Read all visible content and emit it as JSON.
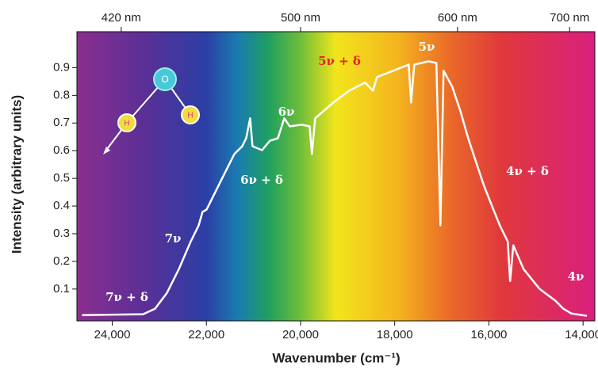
{
  "chart_data": {
    "type": "line",
    "xlabel": "Wavenumber (cm⁻¹)",
    "ylabel": "Intensity (arbitrary units)",
    "xlim": [
      24750,
      13750
    ],
    "ylim": [
      -0.015,
      1.03
    ],
    "xticks": [
      {
        "value": 24000,
        "label": "24,000"
      },
      {
        "value": 22000,
        "label": "22,000"
      },
      {
        "value": 20000,
        "label": "20,000"
      },
      {
        "value": 18000,
        "label": "18,000"
      },
      {
        "value": 16000,
        "label": "16,000"
      },
      {
        "value": 14000,
        "label": "14,000"
      }
    ],
    "yticks": [
      0.1,
      0.2,
      0.3,
      0.4,
      0.5,
      0.6,
      0.7,
      0.8,
      0.9
    ],
    "x2ticks": [
      {
        "value": 420,
        "label": "420 nm"
      },
      {
        "value": 500,
        "label": "500 nm"
      },
      {
        "value": 600,
        "label": "600 nm"
      },
      {
        "value": 700,
        "label": "700 nm"
      }
    ],
    "x": [
      24640,
      23343,
      23091,
      22838,
      22586,
      22333,
      22165,
      22081,
      21997,
      21912,
      21660,
      21407,
      21239,
      21155,
      21071,
      21020,
      20818,
      20650,
      20481,
      20347,
      20229,
      19976,
      19808,
      19758,
      19690,
      19303,
      18966,
      18630,
      18461,
      18377,
      17956,
      17704,
      17653,
      17586,
      17283,
      17115,
      17030,
      16963,
      16778,
      16609,
      16441,
      16273,
      16104,
      15936,
      15768,
      15599,
      15549,
      15482,
      15263,
      14926,
      14589,
      14421,
      14253,
      13916
    ],
    "series": [
      {
        "color": "#ffffff",
        "values": [
          0.006,
          0.009,
          0.029,
          0.086,
          0.172,
          0.272,
          0.33,
          0.379,
          0.387,
          0.416,
          0.502,
          0.588,
          0.616,
          0.645,
          0.717,
          0.616,
          0.602,
          0.636,
          0.645,
          0.717,
          0.688,
          0.694,
          0.688,
          0.588,
          0.717,
          0.774,
          0.817,
          0.846,
          0.817,
          0.866,
          0.894,
          0.911,
          0.774,
          0.911,
          0.923,
          0.917,
          0.33,
          0.889,
          0.831,
          0.745,
          0.645,
          0.559,
          0.473,
          0.401,
          0.33,
          0.272,
          0.129,
          0.258,
          0.172,
          0.101,
          0.058,
          0.029,
          0.012,
          0.003
        ]
      }
    ],
    "annotations": [
      {
        "text": "7ν + δ",
        "color": "#ffffff"
      },
      {
        "text": "7ν",
        "color": "#ffffff"
      },
      {
        "text": "6ν + δ",
        "color": "#ffffff"
      },
      {
        "text": "6ν",
        "color": "#ffffff"
      },
      {
        "text": "5ν + δ",
        "color": "#e8202a"
      },
      {
        "text": "5ν",
        "color": "#ffffff"
      },
      {
        "text": "4ν + δ",
        "color": "#ffffff"
      },
      {
        "text": "4ν",
        "color": "#ffffff"
      }
    ],
    "molecule_labels": [
      "O",
      "H",
      "H"
    ]
  }
}
